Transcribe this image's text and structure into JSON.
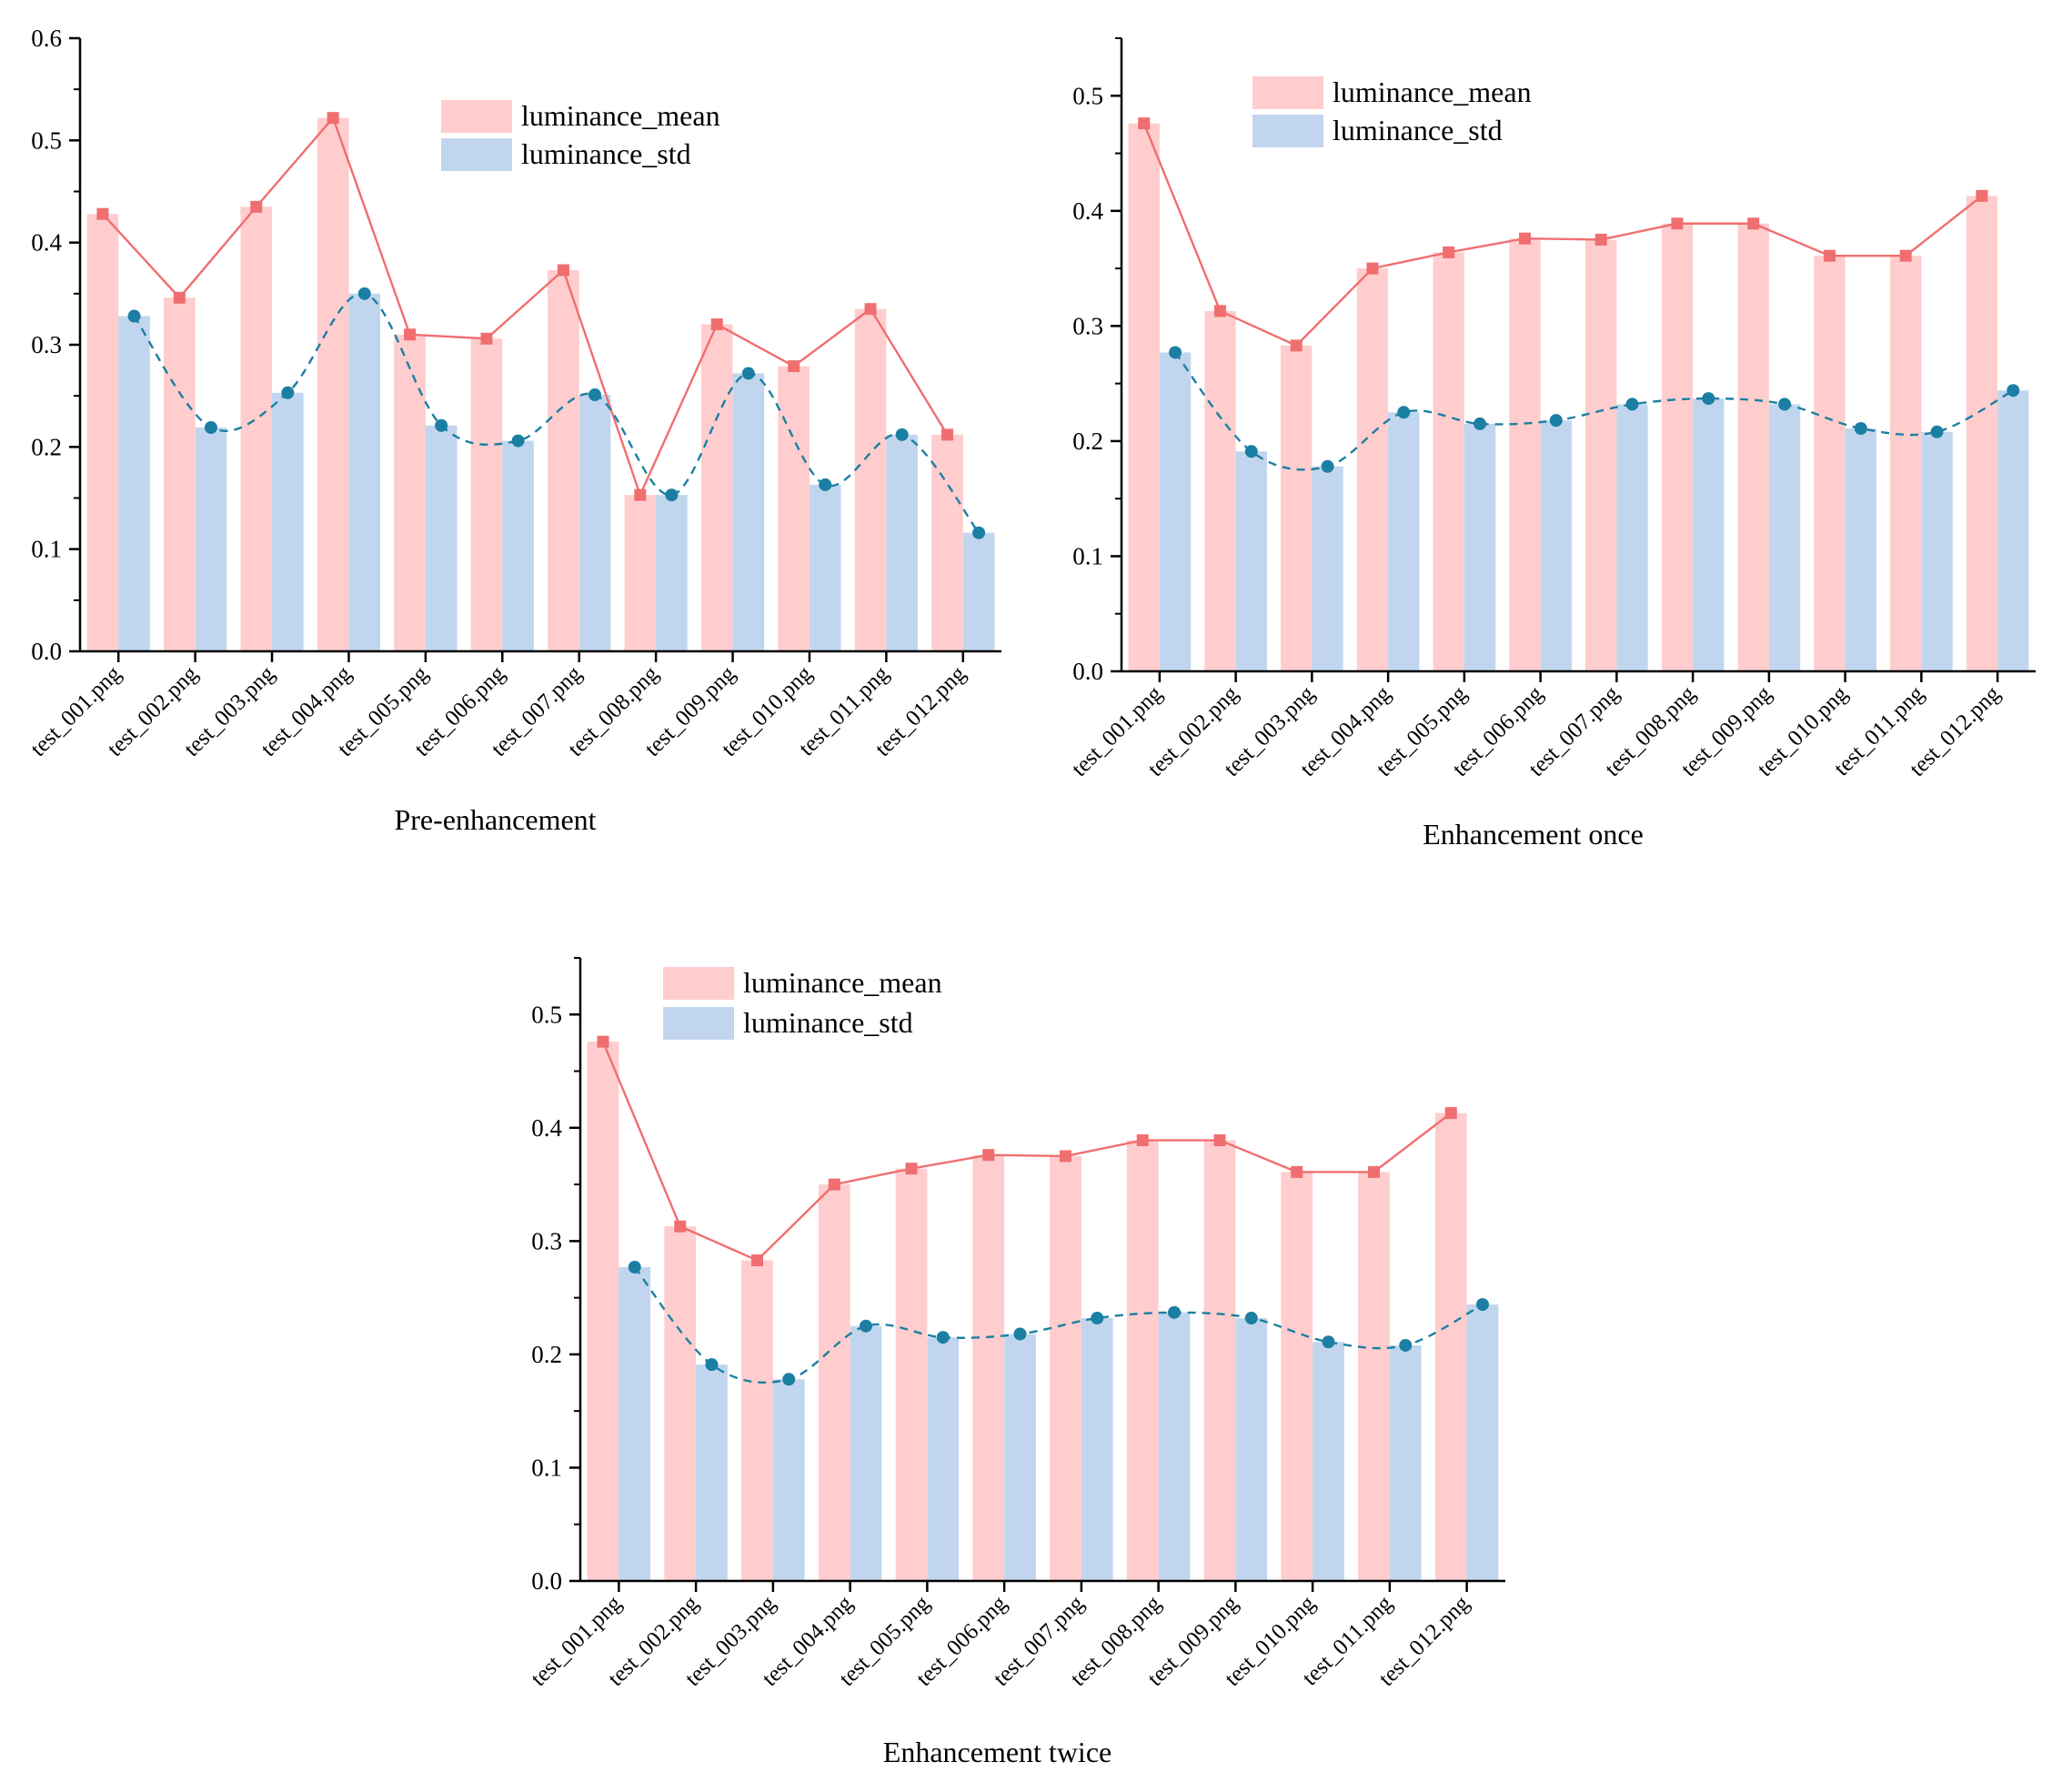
{
  "colors": {
    "mean_bar": "#FFCDCD",
    "std_bar": "#C1D6EE",
    "mean_line": "#F06E70",
    "std_line": "#1B7FA3"
  },
  "chart_data": [
    {
      "type": "bar",
      "title": "Pre-enhancement",
      "categories": [
        "test_001.png",
        "test_002.png",
        "test_003.png",
        "test_004.png",
        "test_005.png",
        "test_006.png",
        "test_007.png",
        "test_008.png",
        "test_009.png",
        "test_010.png",
        "test_011.png",
        "test_012.png"
      ],
      "series": [
        {
          "name": "luminance_mean",
          "values": [
            0.428,
            0.346,
            0.435,
            0.522,
            0.31,
            0.306,
            0.373,
            0.153,
            0.32,
            0.279,
            0.335,
            0.212
          ]
        },
        {
          "name": "luminance_std",
          "values": [
            0.328,
            0.219,
            0.253,
            0.35,
            0.221,
            0.206,
            0.251,
            0.153,
            0.272,
            0.163,
            0.212,
            0.116
          ]
        }
      ],
      "ylim": [
        0,
        0.6
      ],
      "yticks": [
        "0.0",
        "0.1",
        "0.2",
        "0.3",
        "0.4",
        "0.5",
        "0.6"
      ],
      "xlabel": "",
      "ylabel": ""
    },
    {
      "type": "bar",
      "title": "Enhancement once",
      "categories": [
        "test_001.png",
        "test_002.png",
        "test_003.png",
        "test_004.png",
        "test_005.png",
        "test_006.png",
        "test_007.png",
        "test_008.png",
        "test_009.png",
        "test_010.png",
        "test_011.png",
        "test_012.png"
      ],
      "series": [
        {
          "name": "luminance_mean",
          "values": [
            0.476,
            0.313,
            0.283,
            0.35,
            0.364,
            0.376,
            0.375,
            0.389,
            0.389,
            0.361,
            0.361,
            0.413
          ]
        },
        {
          "name": "luminance_std",
          "values": [
            0.277,
            0.191,
            0.178,
            0.225,
            0.215,
            0.218,
            0.232,
            0.237,
            0.232,
            0.211,
            0.208,
            0.244
          ]
        }
      ],
      "ylim": [
        0,
        0.55
      ],
      "yticks": [
        "0.0",
        "0.1",
        "0.2",
        "0.3",
        "0.4",
        "0.5"
      ],
      "xlabel": "",
      "ylabel": ""
    },
    {
      "type": "bar",
      "title": "Enhancement twice",
      "categories": [
        "test_001.png",
        "test_002.png",
        "test_003.png",
        "test_004.png",
        "test_005.png",
        "test_006.png",
        "test_007.png",
        "test_008.png",
        "test_009.png",
        "test_010.png",
        "test_011.png",
        "test_012.png"
      ],
      "series": [
        {
          "name": "luminance_mean",
          "values": [
            0.476,
            0.313,
            0.283,
            0.35,
            0.364,
            0.376,
            0.375,
            0.389,
            0.389,
            0.361,
            0.361,
            0.413
          ]
        },
        {
          "name": "luminance_std",
          "values": [
            0.277,
            0.191,
            0.178,
            0.225,
            0.215,
            0.218,
            0.232,
            0.237,
            0.232,
            0.211,
            0.208,
            0.244
          ]
        }
      ],
      "ylim": [
        0,
        0.55
      ],
      "yticks": [
        "0.0",
        "0.1",
        "0.2",
        "0.3",
        "0.4",
        "0.5"
      ],
      "xlabel": "",
      "ylabel": ""
    }
  ]
}
